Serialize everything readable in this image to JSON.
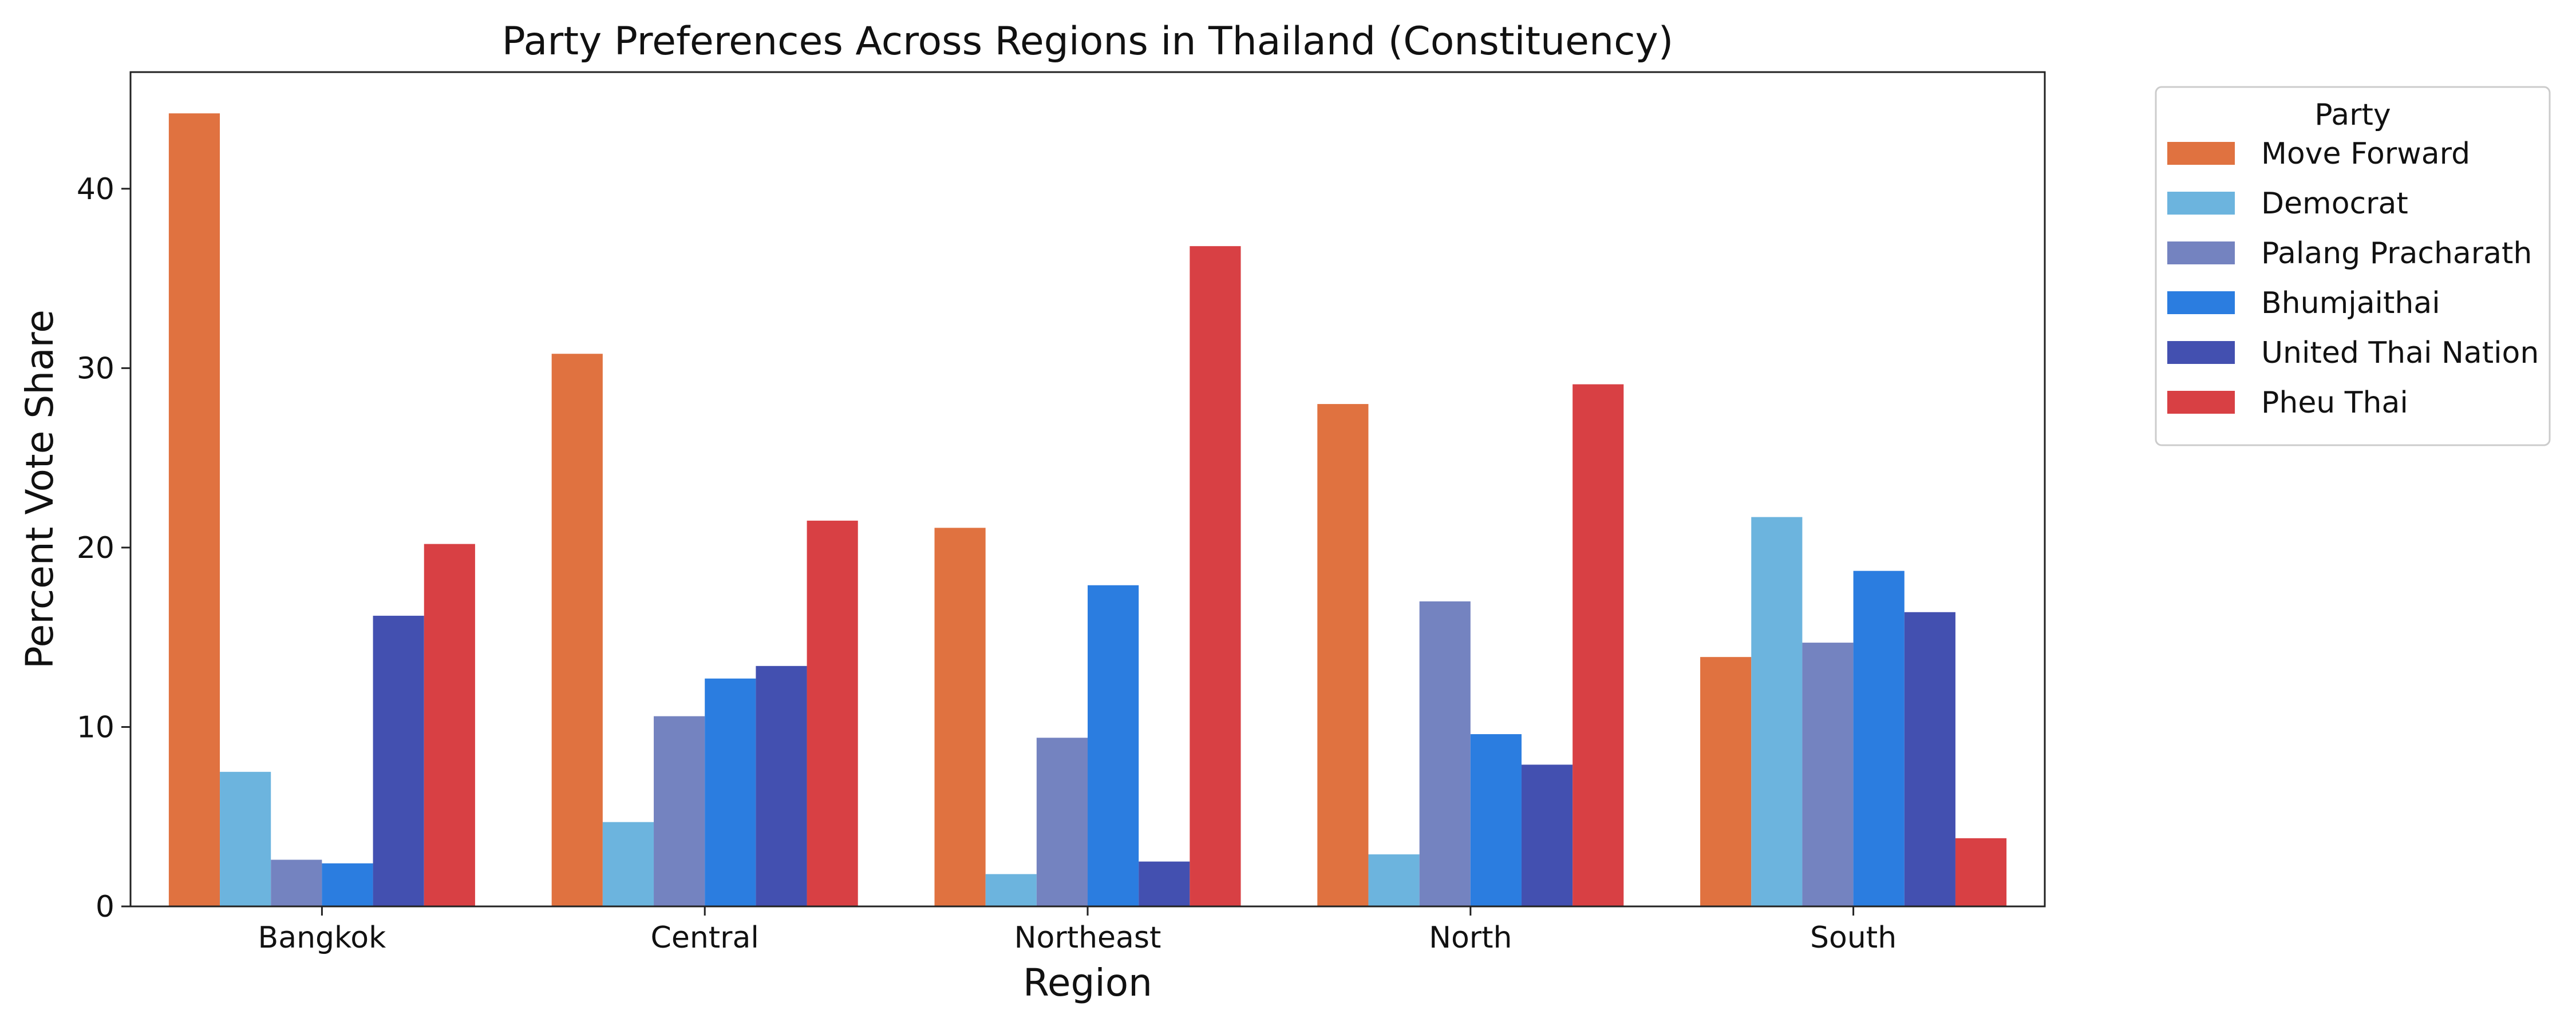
{
  "chart_data": {
    "type": "bar",
    "title": "Party Preferences Across Regions in Thailand (Constituency)",
    "xlabel": "Region",
    "ylabel": "Percent Vote Share",
    "categories": [
      "Bangkok",
      "Central",
      "Northeast",
      "North",
      "South"
    ],
    "ylim": [
      0,
      46.5
    ],
    "yticks": [
      0,
      10,
      20,
      30,
      40
    ],
    "legend": {
      "title": "Party",
      "placement": "outside-right-top"
    },
    "grid": false,
    "series": [
      {
        "name": "Move Forward",
        "color": "#e07240",
        "values": [
          44.2,
          30.8,
          21.1,
          28.0,
          13.9
        ]
      },
      {
        "name": "Democrat",
        "color": "#6cb4de",
        "values": [
          7.5,
          4.7,
          1.8,
          2.9,
          21.7
        ]
      },
      {
        "name": "Palang Pracharath",
        "color": "#7483c0",
        "values": [
          2.6,
          10.6,
          9.4,
          17.0,
          14.7
        ]
      },
      {
        "name": "Bhumjaithai",
        "color": "#2b7de0",
        "values": [
          2.4,
          12.7,
          17.9,
          9.6,
          18.7
        ]
      },
      {
        "name": "United Thai Nation",
        "color": "#4350b0",
        "values": [
          16.2,
          13.4,
          2.5,
          7.9,
          16.4
        ]
      },
      {
        "name": "Pheu Thai",
        "color": "#d84044",
        "values": [
          20.2,
          21.5,
          36.8,
          29.1,
          3.8
        ]
      }
    ]
  }
}
